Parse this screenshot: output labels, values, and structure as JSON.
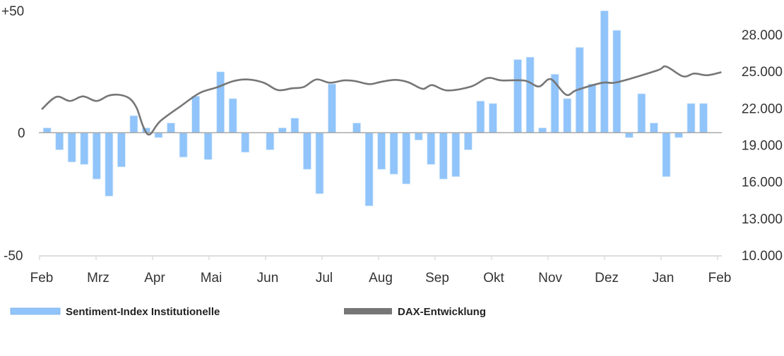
{
  "chart_data": {
    "type": "bar+line",
    "x_labels": [
      "Feb",
      "Mrz",
      "Apr",
      "Mai",
      "Jun",
      "Jul",
      "Aug",
      "Sep",
      "Okt",
      "Nov",
      "Dez",
      "Jan",
      "Feb"
    ],
    "left_axis": {
      "ylim": [
        -50,
        50
      ],
      "tick_labels": [
        "+50",
        "0",
        "-50"
      ]
    },
    "right_axis": {
      "ylim": [
        10000,
        28000
      ],
      "tick_labels": [
        "28.000",
        "25.000",
        "22.000",
        "19.000",
        "16.000",
        "13.000",
        "10.000"
      ]
    },
    "legend_position": "bottom",
    "colors": {
      "bars": "#90c4fa",
      "line": "#767676",
      "zero_line": "#aaaaaa",
      "axis": "#dddddd"
    },
    "series": [
      {
        "name": "Sentiment-Index Institutionelle",
        "type": "bar",
        "axis": "left",
        "frequency": "weekly",
        "values": [
          2,
          -7,
          -12,
          -13,
          -19,
          -26,
          -14,
          7,
          2,
          -2,
          4,
          -10,
          15,
          -11,
          25,
          14,
          -8,
          null,
          -7,
          2,
          6,
          -15,
          -25,
          20,
          null,
          4,
          -30,
          -15,
          -17,
          -21,
          -3,
          -13,
          -19,
          -18,
          -7,
          13,
          12,
          null,
          30,
          31,
          2,
          24,
          14,
          35,
          20,
          50,
          42,
          -2,
          16,
          4,
          -18,
          -2,
          12,
          12
        ]
      },
      {
        "name": "DAX-Entwicklung",
        "type": "line",
        "axis": "right",
        "x_unit": "months from first Feb tick",
        "points": [
          [
            0.0,
            21900
          ],
          [
            0.26,
            22920
          ],
          [
            0.5,
            22580
          ],
          [
            0.73,
            22955
          ],
          [
            0.97,
            22580
          ],
          [
            1.18,
            23010
          ],
          [
            1.36,
            23090
          ],
          [
            1.55,
            22805
          ],
          [
            1.68,
            22020
          ],
          [
            1.8,
            20465
          ],
          [
            1.91,
            19850
          ],
          [
            2.1,
            20940
          ],
          [
            2.47,
            22190
          ],
          [
            2.8,
            23240
          ],
          [
            3.1,
            23690
          ],
          [
            3.39,
            24200
          ],
          [
            3.64,
            24335
          ],
          [
            3.93,
            24070
          ],
          [
            4.18,
            23470
          ],
          [
            4.43,
            23610
          ],
          [
            4.64,
            23725
          ],
          [
            4.86,
            24335
          ],
          [
            5.1,
            24070
          ],
          [
            5.35,
            24260
          ],
          [
            5.55,
            24200
          ],
          [
            5.8,
            23955
          ],
          [
            6.01,
            24145
          ],
          [
            6.26,
            24300
          ],
          [
            6.49,
            24105
          ],
          [
            6.74,
            23570
          ],
          [
            6.91,
            23875
          ],
          [
            7.18,
            23440
          ],
          [
            7.6,
            23760
          ],
          [
            7.89,
            24450
          ],
          [
            8.14,
            24260
          ],
          [
            8.55,
            24240
          ],
          [
            8.8,
            23760
          ],
          [
            9.01,
            24360
          ],
          [
            9.28,
            23095
          ],
          [
            9.47,
            23470
          ],
          [
            9.93,
            24070
          ],
          [
            10.18,
            24105
          ],
          [
            10.89,
            25065
          ],
          [
            11.05,
            25390
          ],
          [
            11.35,
            24590
          ],
          [
            11.55,
            24820
          ],
          [
            11.78,
            24680
          ],
          [
            12.03,
            24930
          ]
        ]
      }
    ]
  }
}
